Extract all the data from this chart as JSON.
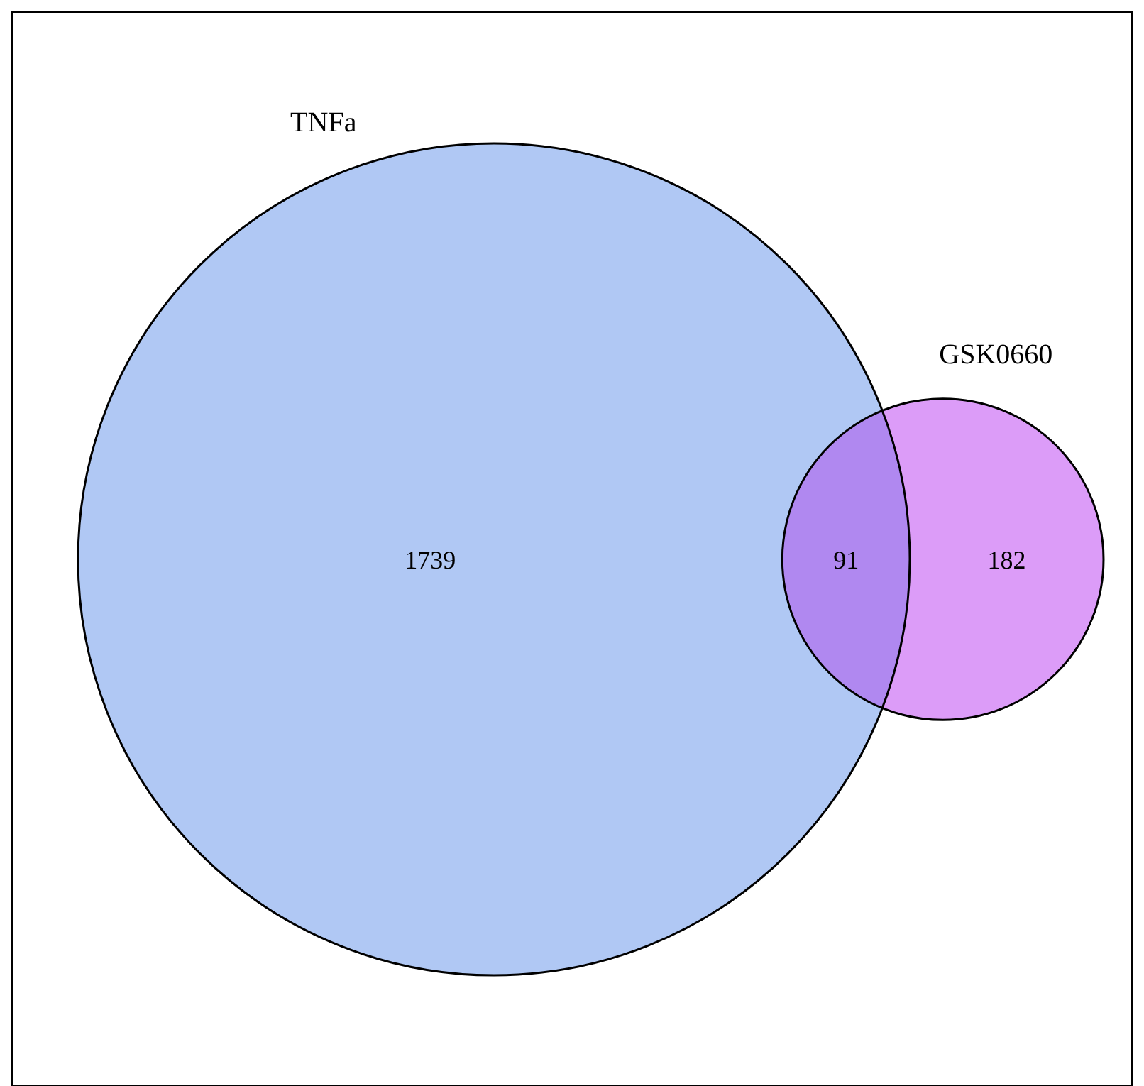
{
  "chart_data": {
    "type": "other",
    "categories": [
      null,
      null,
      null
    ],
    "values": [
      1739,
      91,
      182
    ],
    "colors": [
      "#b0c8f4",
      "#b088f0",
      "#dc9cf8"
    ],
    "data_labels": true,
    "annotations": [
      "TNFa",
      "GSK0660"
    ]
  }
}
